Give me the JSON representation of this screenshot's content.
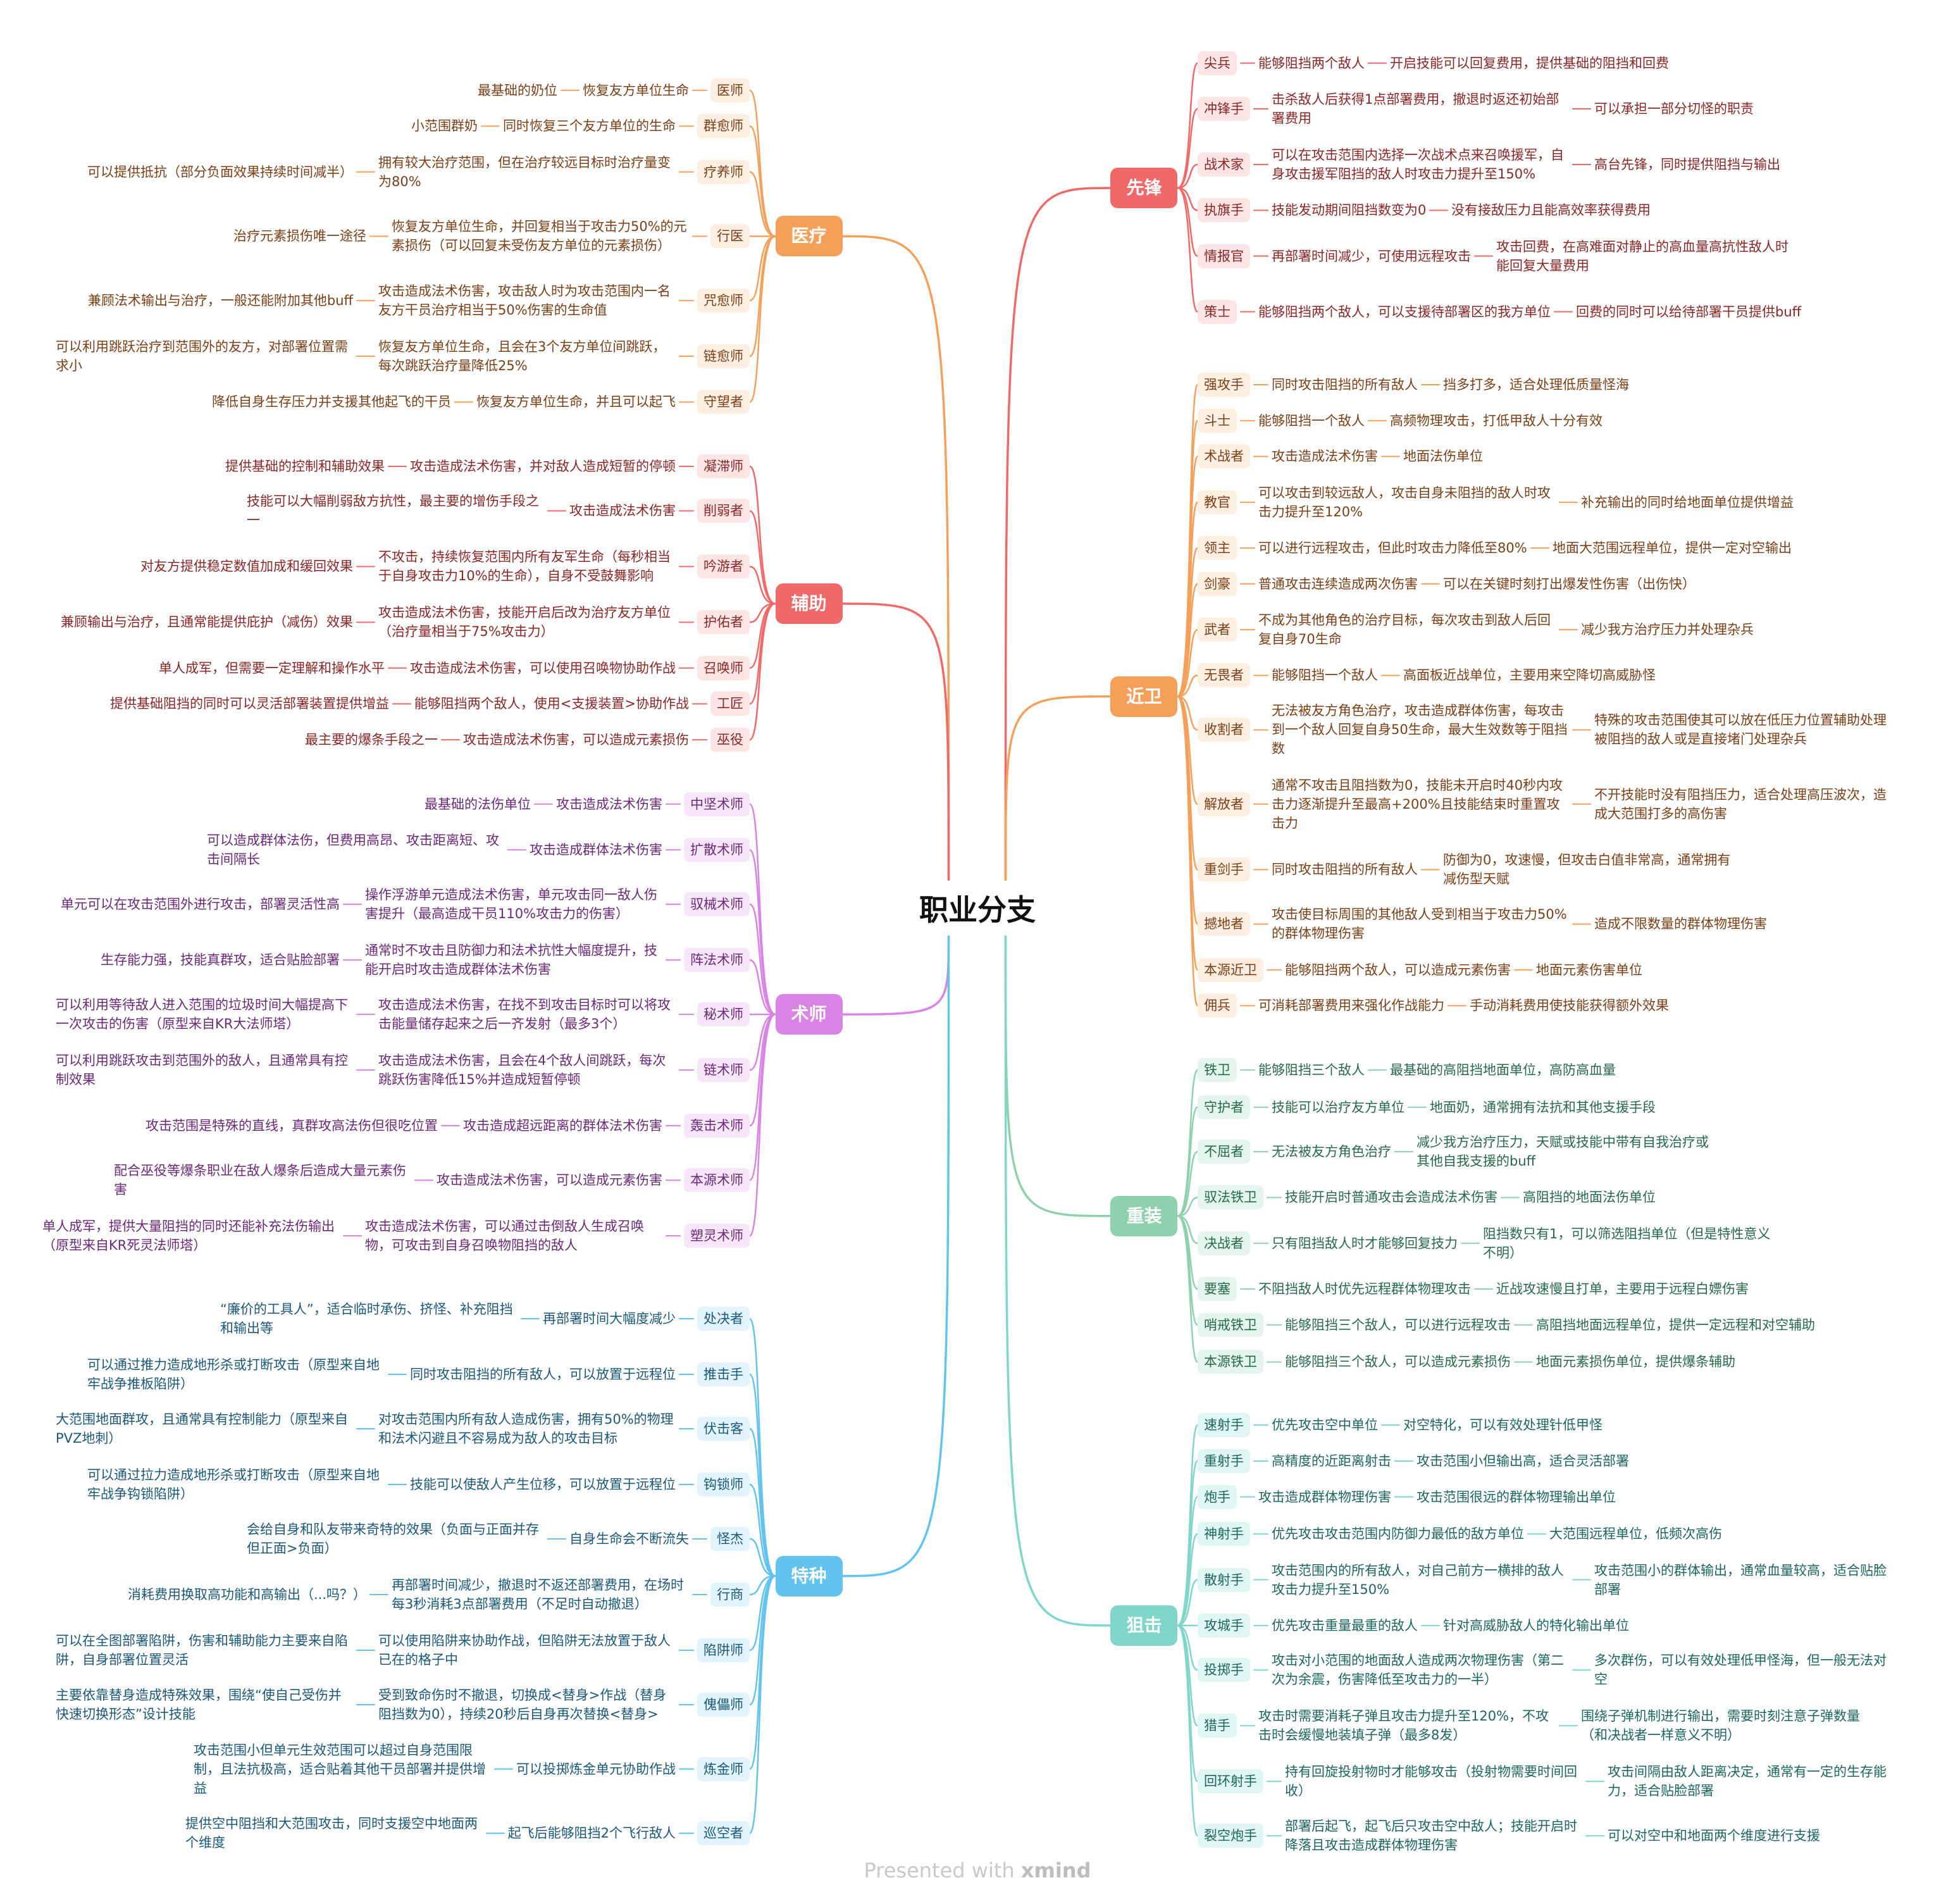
{
  "root": "职业分支",
  "branches": [
    {
      "label": "医疗",
      "children": [
        {
          "label": "医师",
          "desc": "恢复友方单位生命",
          "note": "最基础的奶位"
        },
        {
          "label": "群愈师",
          "desc": "同时恢复三个友方单位的生命",
          "note": "小范围群奶"
        },
        {
          "label": "疗养师",
          "desc": "拥有较大治疗范围，但在治疗较远目标时治疗量变为80%",
          "note": "可以提供抵抗（部分负面效果持续时间减半）"
        },
        {
          "label": "行医",
          "desc": "恢复友方单位生命，并回复相当于攻击力50%的元素损伤（可以回复未受伤友方单位的元素损伤）",
          "note": "治疗元素损伤唯一途径"
        },
        {
          "label": "咒愈师",
          "desc": "攻击造成法术伤害，攻击敌人时为攻击范围内一名友方干员治疗相当于50%伤害的生命值",
          "note": "兼顾法术输出与治疗，一般还能附加其他buff"
        },
        {
          "label": "链愈师",
          "desc": "恢复友方单位生命，且会在3个友方单位间跳跃，每次跳跃治疗量降低25%",
          "note": "可以利用跳跃治疗到范围外的友方，对部署位置需求小"
        },
        {
          "label": "守望者",
          "desc": "恢复友方单位生命，并且可以起飞",
          "note": "降低自身生存压力并支援其他起飞的干员"
        }
      ]
    },
    {
      "label": "辅助",
      "children": [
        {
          "label": "凝滞师",
          "desc": "攻击造成法术伤害，并对敌人造成短暂的停顿",
          "note": "提供基础的控制和辅助效果"
        },
        {
          "label": "削弱者",
          "desc": "攻击造成法术伤害",
          "note": "技能可以大幅削弱敌方抗性，最主要的增伤手段之一"
        },
        {
          "label": "吟游者",
          "desc": "不攻击，持续恢复范围内所有友军生命（每秒相当于自身攻击力10%的生命），自身不受鼓舞影响",
          "note": "对友方提供稳定数值加成和缓回效果"
        },
        {
          "label": "护佑者",
          "desc": "攻击造成法术伤害，技能开启后改为治疗友方单位（治疗量相当于75%攻击力）",
          "note": "兼顾输出与治疗，且通常能提供庇护（减伤）效果"
        },
        {
          "label": "召唤师",
          "desc": "攻击造成法术伤害，可以使用召唤物协助作战",
          "note": "单人成军，但需要一定理解和操作水平"
        },
        {
          "label": "工匠",
          "desc": "能够阻挡两个敌人，使用<支援装置>协助作战",
          "note": "提供基础阻挡的同时可以灵活部署装置提供增益"
        },
        {
          "label": "巫役",
          "desc": "攻击造成法术伤害，可以造成元素损伤",
          "note": "最主要的爆条手段之一"
        }
      ]
    },
    {
      "label": "术师",
      "children": [
        {
          "label": "中坚术师",
          "desc": "攻击造成法术伤害",
          "note": "最基础的法伤单位"
        },
        {
          "label": "扩散术师",
          "desc": "攻击造成群体法术伤害",
          "note": "可以造成群体法伤，但费用高昂、攻击距离短、攻击间隔长"
        },
        {
          "label": "驭械术师",
          "desc": "操作浮游单元造成法术伤害，单元攻击同一敌人伤害提升（最高造成干员110%攻击力的伤害）",
          "note": "单元可以在攻击范围外进行攻击，部署灵活性高"
        },
        {
          "label": "阵法术师",
          "desc": "通常时不攻击且防御力和法术抗性大幅度提升，技能开启时攻击造成群体法术伤害",
          "note": "生存能力强，技能真群攻，适合贴脸部署"
        },
        {
          "label": "秘术师",
          "desc": "攻击造成法术伤害，在找不到攻击目标时可以将攻击能量储存起来之后一齐发射（最多3个）",
          "note": "可以利用等待敌人进入范围的垃圾时间大幅提高下一次攻击的伤害（原型来自KR大法师塔）"
        },
        {
          "label": "链术师",
          "desc": "攻击造成法术伤害，且会在4个敌人间跳跃，每次跳跃伤害降低15%并造成短暂停顿",
          "note": "可以利用跳跃攻击到范围外的敌人，且通常具有控制效果"
        },
        {
          "label": "轰击术师",
          "desc": "攻击造成超远距离的群体法术伤害",
          "note": "攻击范围是特殊的直线，真群攻高法伤但很吃位置"
        },
        {
          "label": "本源术师",
          "desc": "攻击造成法术伤害，可以造成元素伤害",
          "note": "配合巫役等爆条职业在敌人爆条后造成大量元素伤害"
        },
        {
          "label": "塑灵术师",
          "desc": "攻击造成法术伤害，可以通过击倒敌人生成召唤物，可攻击到自身召唤物阻挡的敌人",
          "note": "单人成军，提供大量阻挡的同时还能补充法伤输出（原型来自KR死灵法师塔）"
        }
      ]
    },
    {
      "label": "特种",
      "children": [
        {
          "label": "处决者",
          "desc": "再部署时间大幅度减少",
          "note": "“廉价的工具人”，适合临时承伤、挤怪、补充阻挡和输出等"
        },
        {
          "label": "推击手",
          "desc": "同时攻击阻挡的所有敌人，可以放置于远程位",
          "note": "可以通过推力造成地形杀或打断攻击（原型来自地牢战争推板陷阱）"
        },
        {
          "label": "伏击客",
          "desc": "对攻击范围内所有敌人造成伤害，拥有50%的物理和法术闪避且不容易成为敌人的攻击目标",
          "note": "大范围地面群攻，且通常具有控制能力（原型来自PVZ地刺）"
        },
        {
          "label": "钩锁师",
          "desc": "技能可以使敌人产生位移，可以放置于远程位",
          "note": "可以通过拉力造成地形杀或打断攻击（原型来自地牢战争钩锁陷阱）"
        },
        {
          "label": "怪杰",
          "desc": "自身生命会不断流失",
          "note": "会给自身和队友带来奇特的效果（负面与正面并存但正面>负面）"
        },
        {
          "label": "行商",
          "desc": "再部署时间减少，撤退时不返还部署费用，在场时每3秒消耗3点部署费用（不足时自动撤退）",
          "note": "消耗费用换取高功能和高输出（...吗？）"
        },
        {
          "label": "陷阱师",
          "desc": "可以使用陷阱来协助作战，但陷阱无法放置于敌人已在的格子中",
          "note": "可以在全图部署陷阱，伤害和辅助能力主要来自陷阱，自身部署位置灵活"
        },
        {
          "label": "傀儡师",
          "desc": "受到致命伤时不撤退，切换成<替身>作战（替身阻挡数为0），持续20秒后自身再次替换<替身>",
          "note": "主要依靠替身造成特殊效果，围绕“使自己受伤并快速切换形态”设计技能"
        },
        {
          "label": "炼金师",
          "desc": "可以投掷炼金单元协助作战",
          "note": "攻击范围小但单元生效范围可以超过自身范围限制，且法抗极高，适合贴着其他干员部署并提供增益"
        },
        {
          "label": "巡空者",
          "desc": "起飞后能够阻挡2个飞行敌人",
          "note": "提供空中阻挡和大范围攻击，同时支援空中地面两个维度"
        }
      ]
    },
    {
      "label": "先锋",
      "children": [
        {
          "label": "尖兵",
          "desc": "能够阻挡两个敌人",
          "note": "开启技能可以回复费用，提供基础的阻挡和回费"
        },
        {
          "label": "冲锋手",
          "desc": "击杀敌人后获得1点部署费用，撤退时返还初始部署费用",
          "note": "可以承担一部分切怪的职责"
        },
        {
          "label": "战术家",
          "desc": "可以在攻击范围内选择一次战术点来召唤援军，自身攻击援军阻挡的敌人时攻击力提升至150%",
          "note": "高台先锋，同时提供阻挡与输出"
        },
        {
          "label": "执旗手",
          "desc": "技能发动期间阻挡数变为0",
          "note": "没有接敌压力且能高效率获得费用"
        },
        {
          "label": "情报官",
          "desc": "再部署时间减少，可使用远程攻击",
          "note": "攻击回费，在高难面对静止的高血量高抗性敌人时能回复大量费用"
        },
        {
          "label": "策士",
          "desc": "能够阻挡两个敌人，可以支援待部署区的我方单位",
          "note": "回费的同时可以给待部署干员提供buff"
        }
      ]
    },
    {
      "label": "近卫",
      "children": [
        {
          "label": "强攻手",
          "desc": "同时攻击阻挡的所有敌人",
          "note": "挡多打多，适合处理低质量怪海"
        },
        {
          "label": "斗士",
          "desc": "能够阻挡一个敌人",
          "note": "高频物理攻击，打低甲敌人十分有效"
        },
        {
          "label": "术战者",
          "desc": "攻击造成法术伤害",
          "note": "地面法伤单位"
        },
        {
          "label": "教官",
          "desc": "可以攻击到较远敌人，攻击自身未阻挡的敌人时攻击力提升至120%",
          "note": "补充输出的同时给地面单位提供增益"
        },
        {
          "label": "领主",
          "desc": "可以进行远程攻击，但此时攻击力降低至80%",
          "note": "地面大范围远程单位，提供一定对空输出"
        },
        {
          "label": "剑豪",
          "desc": "普通攻击连续造成两次伤害",
          "note": "可以在关键时刻打出爆发性伤害（出伤快）"
        },
        {
          "label": "武者",
          "desc": "不成为其他角色的治疗目标，每次攻击到敌人后回复自身70生命",
          "note": "减少我方治疗压力并处理杂兵"
        },
        {
          "label": "无畏者",
          "desc": "能够阻挡一个敌人",
          "note": "高面板近战单位，主要用来空降切高威胁怪"
        },
        {
          "label": "收割者",
          "desc": "无法被友方角色治疗，攻击造成群体伤害，每攻击到一个敌人回复自身50生命，最大生效数等于阻挡数",
          "note": "特殊的攻击范围使其可以放在低压力位置辅助处理被阻挡的敌人或是直接堵门处理杂兵"
        },
        {
          "label": "解放者",
          "desc": "通常不攻击且阻挡数为0，技能未开启时40秒内攻击力逐渐提升至最高+200%且技能结束时重置攻击力",
          "note": "不开技能时没有阻挡压力，适合处理高压波次，造成大范围打多的高伤害"
        },
        {
          "label": "重剑手",
          "desc": "同时攻击阻挡的所有敌人",
          "note": "防御为0，攻速慢，但攻击白值非常高，通常拥有减伤型天赋"
        },
        {
          "label": "撼地者",
          "desc": "攻击使目标周围的其他敌人受到相当于攻击力50%的群体物理伤害",
          "note": "造成不限数量的群体物理伤害"
        },
        {
          "label": "本源近卫",
          "desc": "能够阻挡两个敌人，可以造成元素伤害",
          "note": "地面元素伤害单位"
        },
        {
          "label": "佣兵",
          "desc": "可消耗部署费用来强化作战能力",
          "note": "手动消耗费用使技能获得额外效果"
        }
      ]
    },
    {
      "label": "重装",
      "children": [
        {
          "label": "铁卫",
          "desc": "能够阻挡三个敌人",
          "note": "最基础的高阻挡地面单位，高防高血量"
        },
        {
          "label": "守护者",
          "desc": "技能可以治疗友方单位",
          "note": "地面奶，通常拥有法抗和其他支援手段"
        },
        {
          "label": "不屈者",
          "desc": "无法被友方角色治疗",
          "note": "减少我方治疗压力，天赋或技能中带有自我治疗或其他自我支援的buff"
        },
        {
          "label": "驭法铁卫",
          "desc": "技能开启时普通攻击会造成法术伤害",
          "note": "高阻挡的地面法伤单位"
        },
        {
          "label": "决战者",
          "desc": "只有阻挡敌人时才能够回复技力",
          "note": "阻挡数只有1，可以筛选阻挡单位（但是特性意义不明）"
        },
        {
          "label": "要塞",
          "desc": "不阻挡敌人时优先远程群体物理攻击",
          "note": "近战攻速慢且打单，主要用于远程白嫖伤害"
        },
        {
          "label": "哨戒铁卫",
          "desc": "能够阻挡三个敌人，可以进行远程攻击",
          "note": "高阻挡地面远程单位，提供一定远程和对空辅助"
        },
        {
          "label": "本源铁卫",
          "desc": "能够阻挡三个敌人，可以造成元素损伤",
          "note": "地面元素损伤单位，提供爆条辅助"
        }
      ]
    },
    {
      "label": "狙击",
      "children": [
        {
          "label": "速射手",
          "desc": "优先攻击空中单位",
          "note": "对空特化，可以有效处理针低甲怪"
        },
        {
          "label": "重射手",
          "desc": "高精度的近距离射击",
          "note": "攻击范围小但输出高，适合灵活部署"
        },
        {
          "label": "炮手",
          "desc": "攻击造成群体物理伤害",
          "note": "攻击范围很远的群体物理输出单位"
        },
        {
          "label": "神射手",
          "desc": "优先攻击攻击范围内防御力最低的敌方单位",
          "note": "大范围远程单位，低频次高伤"
        },
        {
          "label": "散射手",
          "desc": "攻击范围内的所有敌人，对自己前方一横排的敌人攻击力提升至150%",
          "note": "攻击范围小的群体输出，通常血量较高，适合贴脸部署"
        },
        {
          "label": "攻城手",
          "desc": "优先攻击重量最重的敌人",
          "note": "针对高威胁敌人的特化输出单位"
        },
        {
          "label": "投掷手",
          "desc": "攻击对小范围的地面敌人造成两次物理伤害（第二次为余震，伤害降低至攻击力的一半）",
          "note": "多次群伤，可以有效处理低甲怪海，但一般无法对空"
        },
        {
          "label": "猎手",
          "desc": "攻击时需要消耗子弹且攻击力提升至120%，不攻击时会缓慢地装填子弹（最多8发）",
          "note": "围绕子弹机制进行输出，需要时刻注意子弹数量（和决战者一样意义不明）"
        },
        {
          "label": "回环射手",
          "desc": "持有回旋投射物时才能够攻击（投射物需要时间回收）",
          "note": "攻击间隔由敌人距离决定，通常有一定的生存能力，适合贴脸部署"
        },
        {
          "label": "裂空炮手",
          "desc": "部署后起飞，起飞后只攻击空中敌人；技能开启时降落且攻击造成群体物理伤害",
          "note": "可以对空中和地面两个维度进行支援"
        }
      ]
    }
  ],
  "footer": {
    "text": "Presented with",
    "brand": "xmind"
  }
}
